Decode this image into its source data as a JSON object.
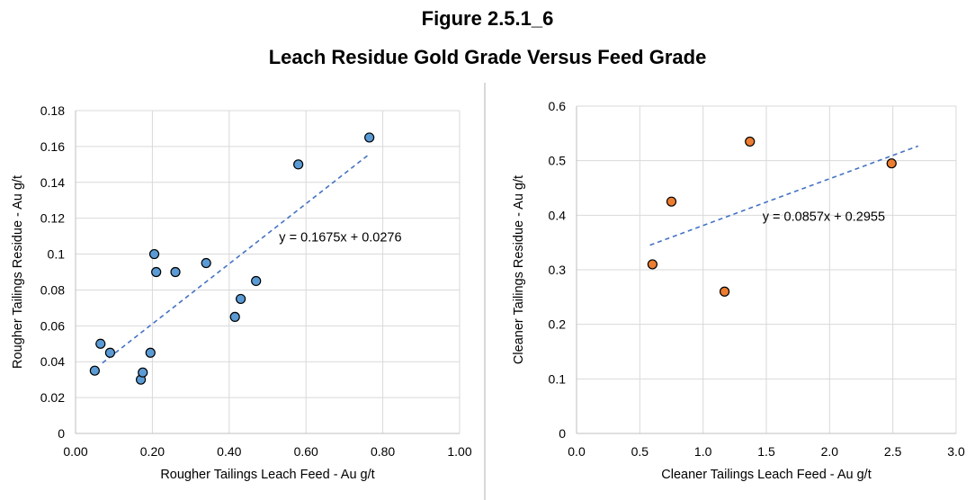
{
  "figure": {
    "number": "Figure 2.5.1_6",
    "title": "Leach Residue Gold Grade Versus Feed Grade"
  },
  "chart_data": [
    {
      "type": "scatter",
      "xlabel": "Rougher Tailings Leach Feed - Au g/t",
      "ylabel": "Rougher Tailings Residue - Au g/t",
      "xlim": [
        0,
        1.0
      ],
      "ylim": [
        0,
        0.18
      ],
      "x_ticks": [
        "0.00",
        "0.20",
        "0.40",
        "0.60",
        "0.80",
        "1.00"
      ],
      "y_ticks": [
        "0",
        "0.02",
        "0.04",
        "0.06",
        "0.08",
        "0.1",
        "0.12",
        "0.14",
        "0.16",
        "0.18"
      ],
      "grid": true,
      "marker_color": "#5b9bd5",
      "trendline_color": "#4472c4",
      "points": [
        {
          "x": 0.05,
          "y": 0.035
        },
        {
          "x": 0.065,
          "y": 0.05
        },
        {
          "x": 0.09,
          "y": 0.045
        },
        {
          "x": 0.17,
          "y": 0.03
        },
        {
          "x": 0.175,
          "y": 0.034
        },
        {
          "x": 0.195,
          "y": 0.045
        },
        {
          "x": 0.205,
          "y": 0.1
        },
        {
          "x": 0.21,
          "y": 0.09
        },
        {
          "x": 0.26,
          "y": 0.09
        },
        {
          "x": 0.34,
          "y": 0.095
        },
        {
          "x": 0.415,
          "y": 0.065
        },
        {
          "x": 0.43,
          "y": 0.075
        },
        {
          "x": 0.47,
          "y": 0.085
        },
        {
          "x": 0.58,
          "y": 0.15
        },
        {
          "x": 0.765,
          "y": 0.165
        }
      ],
      "trendline": {
        "slope": 0.1675,
        "intercept": 0.0276,
        "x_range": [
          0.07,
          0.76
        ],
        "label": "y = 0.1675x + 0.0276",
        "label_pos": [
          0.53,
          0.107
        ]
      }
    },
    {
      "type": "scatter",
      "xlabel": "Cleaner Tailings Leach Feed - Au g/t",
      "ylabel": "Cleaner Tailings Residue - Au g/t",
      "xlim": [
        0,
        3.0
      ],
      "ylim": [
        0,
        0.6
      ],
      "x_ticks": [
        "0.0",
        "0.5",
        "1.0",
        "1.5",
        "2.0",
        "2.5",
        "3.0"
      ],
      "y_ticks": [
        "0",
        "0.1",
        "0.2",
        "0.3",
        "0.4",
        "0.5",
        "0.6"
      ],
      "grid": true,
      "marker_color": "#ed7d31",
      "trendline_color": "#4472c4",
      "points": [
        {
          "x": 0.6,
          "y": 0.31
        },
        {
          "x": 0.75,
          "y": 0.425
        },
        {
          "x": 1.17,
          "y": 0.26
        },
        {
          "x": 1.37,
          "y": 0.535
        },
        {
          "x": 2.49,
          "y": 0.495
        }
      ],
      "trendline": {
        "slope": 0.0857,
        "intercept": 0.2955,
        "x_range": [
          0.58,
          2.7
        ],
        "label": "y = 0.0857x + 0.2955",
        "label_pos": [
          1.47,
          0.39
        ]
      }
    }
  ]
}
